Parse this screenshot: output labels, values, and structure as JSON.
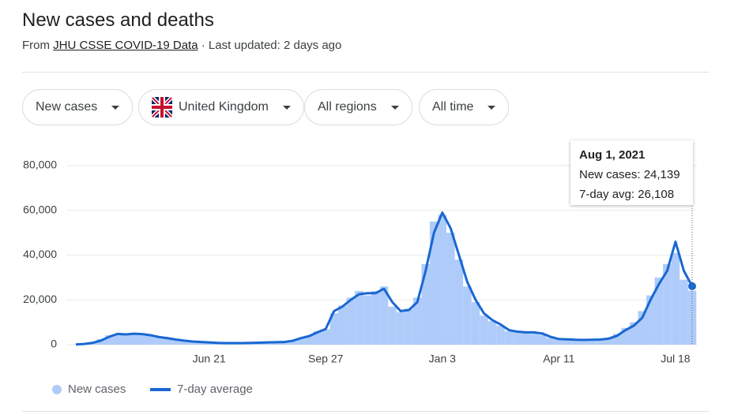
{
  "header": {
    "title": "New cases and deaths",
    "source_prefix": "From",
    "source_link": "JHU CSSE COVID-19 Data",
    "updated": "· Last updated: 2 days ago"
  },
  "filters": [
    "New cases",
    "United Kingdom",
    "All regions",
    "All time"
  ],
  "chart_data": {
    "type": "bar",
    "categories": [
      null,
      null,
      null,
      null,
      null,
      null,
      null,
      null,
      null,
      null,
      null,
      null,
      null,
      null,
      null,
      null,
      "Jun 21",
      null,
      null,
      null,
      null,
      null,
      null,
      null,
      null,
      null,
      null,
      null,
      null,
      null,
      "Sep 27",
      null,
      null,
      null,
      null,
      null,
      null,
      null,
      null,
      null,
      null,
      null,
      null,
      null,
      "Jan 3",
      null,
      null,
      null,
      null,
      null,
      null,
      null,
      null,
      null,
      null,
      null,
      null,
      null,
      "Apr 11",
      null,
      null,
      null,
      null,
      null,
      null,
      null,
      null,
      null,
      null,
      null,
      null,
      null,
      "Jul 18",
      null,
      null
    ],
    "series": [
      {
        "name": "New cases",
        "type": "bar",
        "color": "#aecbfa",
        "values": [
          50,
          200,
          900,
          2500,
          4200,
          4600,
          4800,
          5100,
          4500,
          4300,
          3200,
          2700,
          2100,
          1600,
          1300,
          1100,
          1000,
          700,
          600,
          650,
          700,
          800,
          950,
          1050,
          1200,
          1300,
          2000,
          3000,
          4000,
          6000,
          6800,
          14000,
          17500,
          21000,
          24000,
          22000,
          24000,
          26000,
          17000,
          14500,
          16000,
          21000,
          36000,
          55000,
          58000,
          50000,
          38000,
          26000,
          19000,
          13000,
          10500,
          8500,
          6000,
          5600,
          5400,
          5300,
          4500,
          3000,
          2300,
          2200,
          2000,
          2100,
          2100,
          2400,
          3000,
          4800,
          7500,
          10000,
          15000,
          22000,
          30000,
          36000,
          41000,
          29000,
          24139
        ]
      },
      {
        "name": "7-day average",
        "type": "line",
        "color": "#1967d2",
        "values": [
          100,
          300,
          800,
          1800,
          3500,
          4800,
          4600,
          4900,
          4700,
          4200,
          3400,
          2900,
          2300,
          1800,
          1400,
          1200,
          1000,
          800,
          700,
          700,
          700,
          800,
          900,
          1000,
          1100,
          1200,
          1700,
          2900,
          3800,
          5500,
          7000,
          15000,
          17000,
          20000,
          22500,
          23000,
          23000,
          25000,
          19000,
          15000,
          15500,
          19000,
          33000,
          50000,
          59000,
          52000,
          40000,
          28000,
          20000,
          14000,
          11000,
          9000,
          6500,
          5800,
          5500,
          5500,
          5000,
          3500,
          2500,
          2400,
          2200,
          2100,
          2200,
          2300,
          2700,
          4000,
          6500,
          8500,
          12000,
          20000,
          27000,
          33000,
          46000,
          33000,
          26108
        ]
      }
    ],
    "ylim": [
      0,
      80000
    ],
    "yticks": [
      0,
      {
        "value": 20000,
        "label": "20,000"
      },
      {
        "value": 40000,
        "label": "40,000"
      },
      {
        "value": 60000,
        "label": "60,000"
      },
      {
        "value": 80000,
        "label": "80,000"
      }
    ],
    "grid": true,
    "legend": "bottom",
    "tooltip": {
      "date": "Aug 1, 2021",
      "lines": [
        "New cases: 24,139",
        "7-day avg: 26,108"
      ]
    }
  }
}
